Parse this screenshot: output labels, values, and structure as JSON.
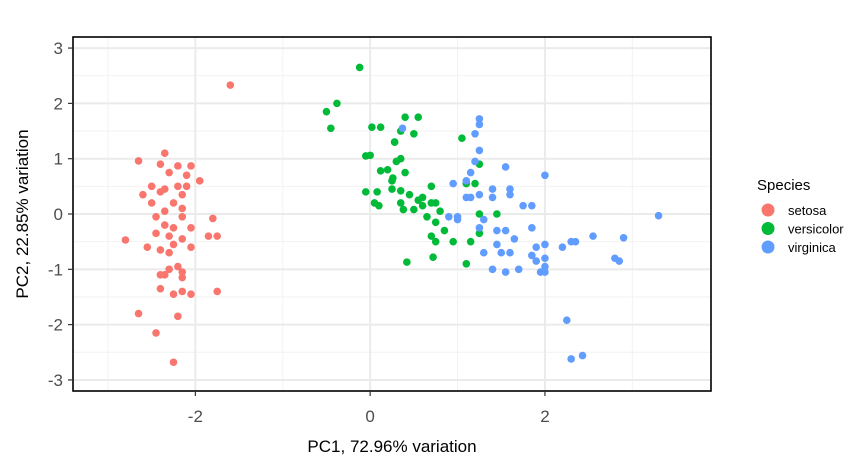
{
  "chart_data": {
    "type": "scatter",
    "title": "",
    "xlabel": "PC1, 72.96% variation",
    "ylabel": "PC2, 22.85% variation",
    "xlim": [
      -3.4,
      3.9
    ],
    "ylim": [
      -3.2,
      3.2
    ],
    "xticks": [
      -2,
      0,
      2
    ],
    "xtick_labels": [
      "-2",
      "0",
      "2"
    ],
    "yticks": [
      -3,
      -2,
      -1,
      0,
      1,
      2,
      3
    ],
    "ytick_labels": [
      "-3",
      "-2",
      "-1",
      "0",
      "1",
      "2",
      "3"
    ],
    "grid": true,
    "legend": {
      "title": "Species",
      "placement": "right"
    },
    "series": [
      {
        "name": "setosa",
        "color": "#f8766d",
        "points": [
          [
            -1.6,
            2.33
          ],
          [
            -2.35,
            1.1
          ],
          [
            -2.65,
            0.96
          ],
          [
            -2.4,
            0.9
          ],
          [
            -2.2,
            0.87
          ],
          [
            -2.05,
            0.87
          ],
          [
            -2.3,
            0.75
          ],
          [
            -2.1,
            0.7
          ],
          [
            -1.95,
            0.6
          ],
          [
            -2.5,
            0.5
          ],
          [
            -2.2,
            0.5
          ],
          [
            -2.1,
            0.5
          ],
          [
            -2.35,
            0.45
          ],
          [
            -2.15,
            0.35
          ],
          [
            -2.6,
            0.35
          ],
          [
            -2.4,
            0.4
          ],
          [
            -2.25,
            0.2
          ],
          [
            -2.5,
            0.2
          ],
          [
            -2.15,
            0.1
          ],
          [
            -2.35,
            0.05
          ],
          [
            -2.45,
            -0.05
          ],
          [
            -2.15,
            -0.05
          ],
          [
            -1.8,
            -0.08
          ],
          [
            -2.35,
            -0.2
          ],
          [
            -2.25,
            -0.25
          ],
          [
            -2.05,
            -0.25
          ],
          [
            -2.45,
            -0.35
          ],
          [
            -2.3,
            -0.4
          ],
          [
            -2.15,
            -0.45
          ],
          [
            -1.85,
            -0.4
          ],
          [
            -1.75,
            -0.4
          ],
          [
            -2.8,
            -0.47
          ],
          [
            -2.25,
            -0.55
          ],
          [
            -2.55,
            -0.6
          ],
          [
            -2.05,
            -0.6
          ],
          [
            -2.4,
            -0.65
          ],
          [
            -2.3,
            -0.7
          ],
          [
            -2.2,
            -0.95
          ],
          [
            -2.3,
            -1.0
          ],
          [
            -2.15,
            -1.05
          ],
          [
            -2.4,
            -1.1
          ],
          [
            -2.35,
            -1.1
          ],
          [
            -2.15,
            -1.15
          ],
          [
            -2.4,
            -1.35
          ],
          [
            -2.15,
            -1.4
          ],
          [
            -2.25,
            -1.45
          ],
          [
            -2.05,
            -1.45
          ],
          [
            -1.75,
            -1.4
          ],
          [
            -2.65,
            -1.8
          ],
          [
            -2.2,
            -1.85
          ],
          [
            -2.45,
            -2.15
          ],
          [
            -2.25,
            -2.68
          ]
        ]
      },
      {
        "name": "versicolor",
        "color": "#00ba38",
        "points": [
          [
            -0.12,
            2.65
          ],
          [
            -0.38,
            2.0
          ],
          [
            -0.5,
            1.85
          ],
          [
            -0.45,
            1.55
          ],
          [
            0.4,
            1.75
          ],
          [
            0.55,
            1.75
          ],
          [
            0.02,
            1.57
          ],
          [
            0.12,
            1.57
          ],
          [
            0.35,
            1.5
          ],
          [
            0.5,
            1.45
          ],
          [
            0.28,
            1.3
          ],
          [
            0.28,
            1.3
          ],
          [
            1.05,
            1.37
          ],
          [
            0.0,
            1.06
          ],
          [
            -0.05,
            1.05
          ],
          [
            0.35,
            1.0
          ],
          [
            0.3,
            0.95
          ],
          [
            0.2,
            0.8
          ],
          [
            0.12,
            0.78
          ],
          [
            0.4,
            0.75
          ],
          [
            0.26,
            0.65
          ],
          [
            0.25,
            0.6
          ],
          [
            0.7,
            0.5
          ],
          [
            1.25,
            0.9
          ],
          [
            1.2,
            0.55
          ],
          [
            1.1,
            0.55
          ],
          [
            0.25,
            0.45
          ],
          [
            0.35,
            0.42
          ],
          [
            0.45,
            0.35
          ],
          [
            -0.05,
            0.4
          ],
          [
            0.08,
            0.4
          ],
          [
            0.6,
            0.3
          ],
          [
            0.55,
            0.25
          ],
          [
            0.7,
            0.2
          ],
          [
            0.05,
            0.2
          ],
          [
            0.1,
            0.15
          ],
          [
            0.35,
            0.2
          ],
          [
            0.6,
            0.15
          ],
          [
            0.75,
            0.2
          ],
          [
            0.38,
            0.08
          ],
          [
            0.5,
            0.08
          ],
          [
            0.8,
            0.05
          ],
          [
            0.65,
            -0.05
          ],
          [
            1.25,
            0.0
          ],
          [
            1.45,
            0.0
          ],
          [
            0.75,
            -0.15
          ],
          [
            0.85,
            -0.3
          ],
          [
            0.7,
            -0.4
          ],
          [
            1.25,
            -0.35
          ],
          [
            0.75,
            -0.5
          ],
          [
            0.95,
            -0.5
          ],
          [
            1.15,
            -0.5
          ],
          [
            0.72,
            -0.78
          ],
          [
            0.42,
            -0.87
          ],
          [
            1.1,
            -0.9
          ]
        ]
      },
      {
        "name": "virginica",
        "color": "#619cff",
        "points": [
          [
            1.25,
            1.72
          ],
          [
            1.25,
            1.62
          ],
          [
            0.37,
            1.55
          ],
          [
            1.2,
            1.45
          ],
          [
            1.25,
            1.15
          ],
          [
            1.2,
            0.95
          ],
          [
            1.15,
            0.75
          ],
          [
            1.55,
            0.85
          ],
          [
            2.0,
            0.7
          ],
          [
            1.1,
            0.6
          ],
          [
            0.95,
            0.55
          ],
          [
            1.4,
            0.45
          ],
          [
            1.6,
            0.45
          ],
          [
            1.25,
            0.35
          ],
          [
            1.6,
            0.35
          ],
          [
            1.1,
            0.3
          ],
          [
            1.15,
            0.3
          ],
          [
            1.4,
            0.3
          ],
          [
            1.75,
            0.15
          ],
          [
            1.85,
            0.15
          ],
          [
            0.9,
            -0.05
          ],
          [
            1.0,
            -0.05
          ],
          [
            1.0,
            -0.1
          ],
          [
            1.3,
            -0.1
          ],
          [
            3.3,
            -0.03
          ],
          [
            1.25,
            -0.25
          ],
          [
            1.45,
            -0.3
          ],
          [
            1.55,
            -0.3
          ],
          [
            1.85,
            -0.25
          ],
          [
            1.65,
            -0.45
          ],
          [
            1.45,
            -0.55
          ],
          [
            1.3,
            -0.7
          ],
          [
            1.5,
            -0.7
          ],
          [
            1.6,
            -0.7
          ],
          [
            1.9,
            -0.6
          ],
          [
            2.0,
            -0.55
          ],
          [
            2.35,
            -0.5
          ],
          [
            2.55,
            -0.4
          ],
          [
            2.3,
            -0.5
          ],
          [
            2.2,
            -0.6
          ],
          [
            2.9,
            -0.43
          ],
          [
            1.85,
            -0.75
          ],
          [
            2.0,
            -0.8
          ],
          [
            1.9,
            -0.85
          ],
          [
            2.0,
            -0.95
          ],
          [
            1.7,
            -1.0
          ],
          [
            1.4,
            -1.0
          ],
          [
            1.55,
            -1.05
          ],
          [
            1.95,
            -1.05
          ],
          [
            2.0,
            -1.05
          ],
          [
            2.8,
            -0.8
          ],
          [
            2.85,
            -0.85
          ],
          [
            2.25,
            -1.92
          ],
          [
            2.3,
            -2.62
          ],
          [
            2.43,
            -2.56
          ]
        ]
      }
    ]
  }
}
